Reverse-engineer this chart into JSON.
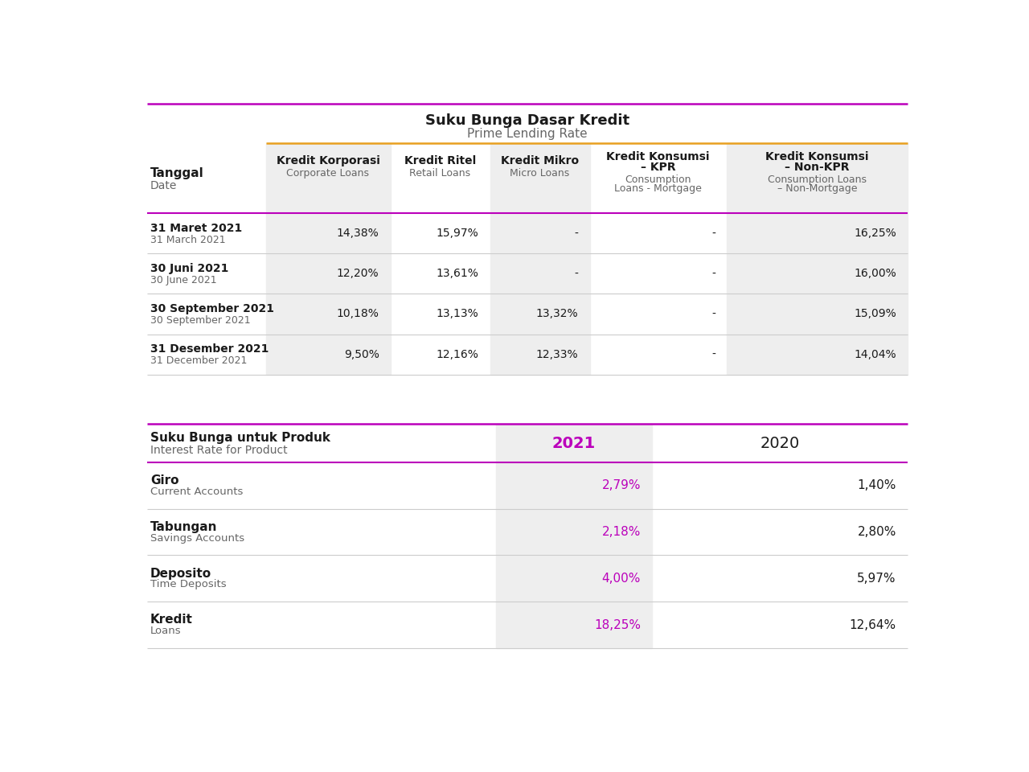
{
  "bg_color": "#ffffff",
  "purple": "#bb00bb",
  "orange": "#e8a020",
  "gray_bg": "#eeeeee",
  "text_dark": "#1a1a1a",
  "text_gray": "#666666",
  "line_light": "#cccccc",
  "table1_title_bold": "Suku Bunga Dasar Kredit",
  "table1_title_light": "Prime Lending Rate",
  "table1_col_headers_bold": [
    "Kredit Korporasi",
    "Kredit Ritel",
    "Kredit Mikro",
    "Kredit Konsumsi\n– KPR",
    "Kredit Konsumsi\n– Non-KPR"
  ],
  "table1_col_headers_light": [
    "Corporate Loans",
    "Retail Loans",
    "Micro Loans",
    "Consumption\nLoans - Mortgage",
    "Consumption Loans\n– Non-Mortgage"
  ],
  "table1_row_label_bold": "Tanggal",
  "table1_row_label_light": "Date",
  "table1_row_headers": [
    [
      "31 Maret 2021",
      "31 March 2021"
    ],
    [
      "30 Juni 2021",
      "30 June 2021"
    ],
    [
      "30 September 2021",
      "30 September 2021"
    ],
    [
      "31 Desember 2021",
      "31 December 2021"
    ]
  ],
  "table1_data": [
    [
      "14,38%",
      "15,97%",
      "-",
      "-",
      "16,25%"
    ],
    [
      "12,20%",
      "13,61%",
      "-",
      "-",
      "16,00%"
    ],
    [
      "10,18%",
      "13,13%",
      "13,32%",
      "-",
      "15,09%"
    ],
    [
      "9,50%",
      "12,16%",
      "12,33%",
      "-",
      "14,04%"
    ]
  ],
  "table2_title_bold": "Suku Bunga untuk Produk",
  "table2_title_light": "Interest Rate for Product",
  "table2_col_headers": [
    "2021",
    "2020"
  ],
  "table2_row_headers": [
    [
      "Giro",
      "Current Accounts"
    ],
    [
      "Tabungan",
      "Savings Accounts"
    ],
    [
      "Deposito",
      "Time Deposits"
    ],
    [
      "Kredit",
      "Loans"
    ]
  ],
  "table2_data": [
    [
      "2,79%",
      "1,40%"
    ],
    [
      "2,18%",
      "2,80%"
    ],
    [
      "4,00%",
      "5,97%"
    ],
    [
      "18,25%",
      "12,64%"
    ]
  ]
}
